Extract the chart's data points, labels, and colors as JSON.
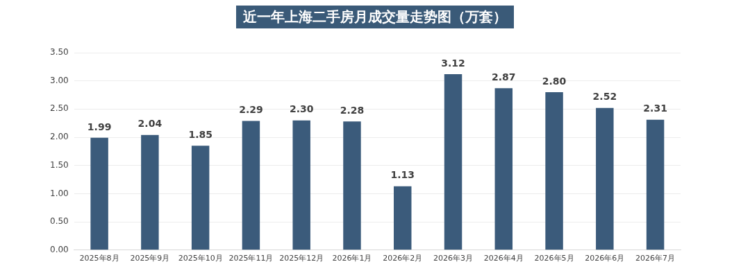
{
  "chart_data": {
    "type": "bar",
    "title": "近一年上海二手房月成交量走势图（万套）",
    "categories": [
      "2025年8月",
      "2025年9月",
      "2025年10月",
      "2025年11月",
      "2025年12月",
      "2026年1月",
      "2026年2月",
      "2026年3月",
      "2026年4月",
      "2026年5月",
      "2026年6月",
      "2026年7月"
    ],
    "values": [
      1.99,
      2.04,
      1.85,
      2.29,
      2.3,
      2.28,
      1.13,
      3.12,
      2.87,
      2.8,
      2.52,
      2.31
    ],
    "value_labels": [
      "1.99",
      "2.04",
      "1.85",
      "2.29",
      "2.30",
      "2.28",
      "1.13",
      "3.12",
      "2.87",
      "2.80",
      "2.52",
      "2.31"
    ],
    "color": "#3b5b7b",
    "ylim": [
      0,
      3.5
    ],
    "yticks": [
      {
        "value": 0,
        "label": "0.00"
      },
      {
        "value": 0.5,
        "label": "0.50"
      },
      {
        "value": 1,
        "label": "1.00"
      },
      {
        "value": 1.5,
        "label": "1.50"
      },
      {
        "value": 2,
        "label": "2.00"
      },
      {
        "value": 2.5,
        "label": "2.50"
      },
      {
        "value": 3,
        "label": "3.00"
      },
      {
        "value": 3.5,
        "label": "3.50"
      }
    ],
    "grid": "y",
    "legend": false
  }
}
